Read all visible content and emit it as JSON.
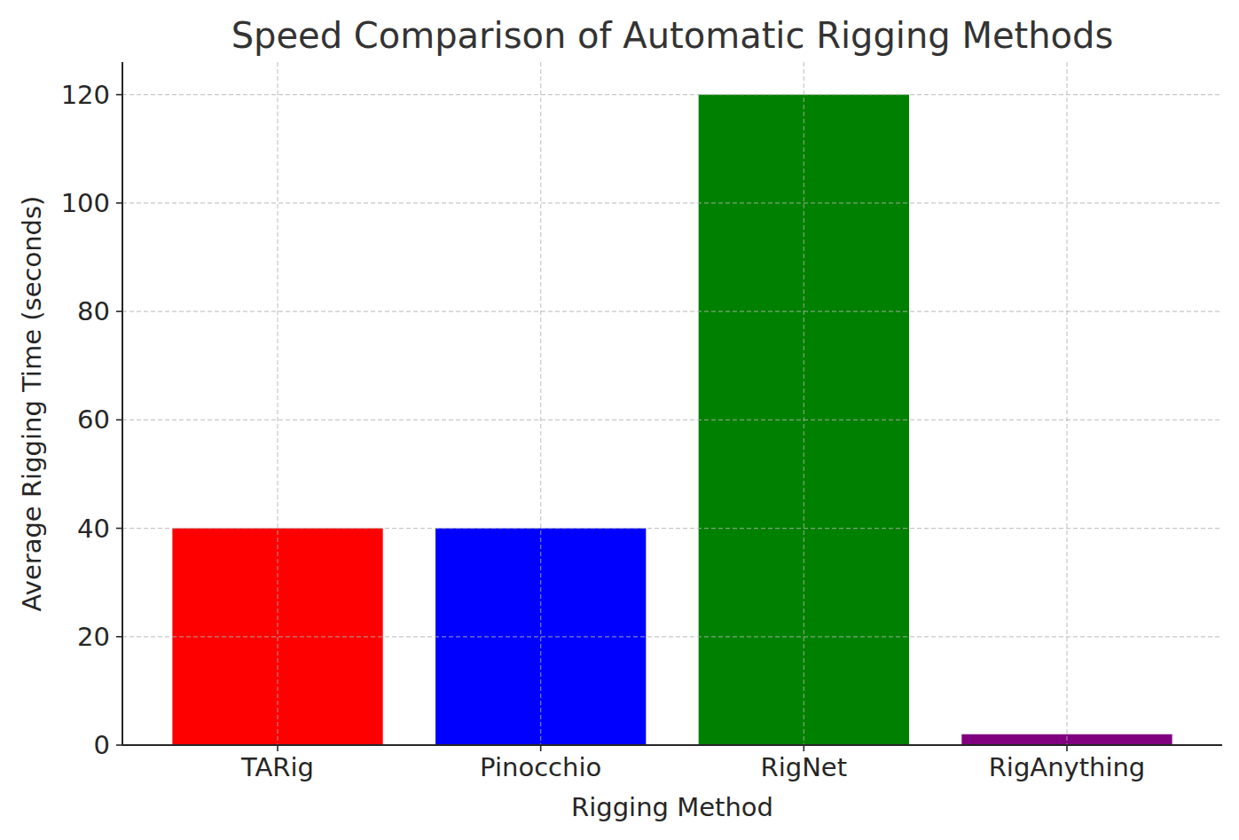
{
  "chart_data": {
    "type": "bar",
    "title": "Speed Comparison of Automatic Rigging Methods",
    "x_label": "Rigging Method",
    "y_label": "Average Rigging Time (seconds)",
    "categories": [
      "TARig",
      "Pinocchio",
      "RigNet",
      "RigAnything"
    ],
    "values": [
      40,
      40,
      120,
      2
    ],
    "colors": [
      "#ff0000",
      "#0000ff",
      "#008000",
      "#800080"
    ],
    "ylim": [
      0,
      126
    ],
    "yticks": [
      0,
      20,
      40,
      60,
      80,
      100,
      120
    ],
    "grid": true
  }
}
